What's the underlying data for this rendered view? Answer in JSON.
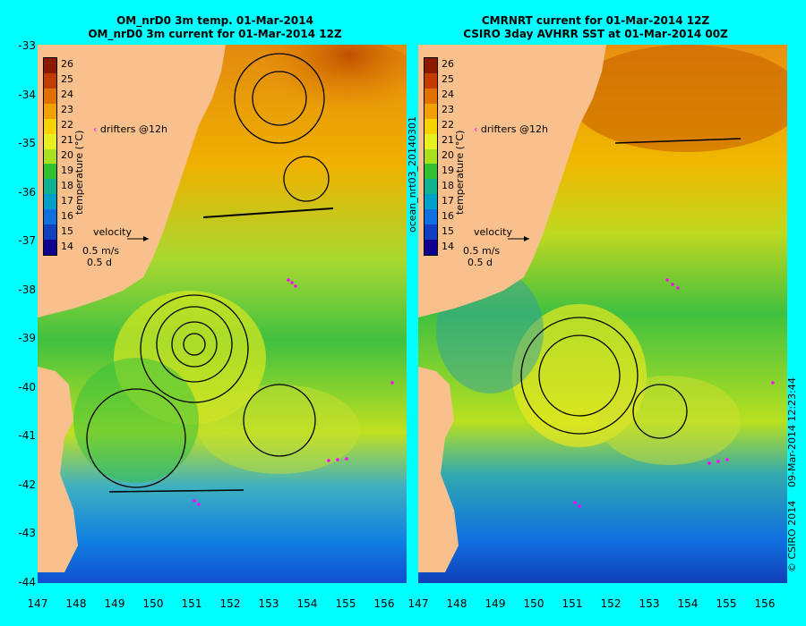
{
  "left": {
    "title_line1": "OM_nrD0 3m temp. 01-Mar-2014",
    "title_line2": "OM_nrD0 3m current for 01-Mar-2014 12Z"
  },
  "right": {
    "title_line1": "CMRNRT current for 01-Mar-2014 12Z",
    "title_line2": "CSIRO 3day AVHRR SST at 01-Mar-2014 00Z"
  },
  "colorbar": {
    "title": "temperature (°C)",
    "labels": [
      "26",
      "25",
      "24",
      "23",
      "22",
      "21",
      "20",
      "19",
      "18",
      "17",
      "16",
      "15",
      "14"
    ],
    "colors": [
      "#8b1a00",
      "#c23c00",
      "#e07000",
      "#f0a000",
      "#f7d400",
      "#e8f020",
      "#a8e020",
      "#30c030",
      "#10b090",
      "#00a0c8",
      "#1070e0",
      "#1040c0",
      "#100090"
    ]
  },
  "legend": {
    "drifters": "drifters @12h",
    "velocity": "velocity",
    "speed": "0.5 m/s",
    "duration": "0.5 d"
  },
  "y_ticks": [
    "-33",
    "-34",
    "-35",
    "-36",
    "-37",
    "-38",
    "-39",
    "-40",
    "-41",
    "-42",
    "-43",
    "-44"
  ],
  "x_ticks": [
    "147",
    "148",
    "149",
    "150",
    "151",
    "152",
    "153",
    "154",
    "155",
    "156"
  ],
  "side_label_left": "ocean_nrt03_20140301",
  "side_label_right": "09-Mar-2014 12:23:44",
  "credit": "© CSIRO 2014",
  "colors": {
    "background": "#00ffff",
    "land": "#f8c08c",
    "drifter": "#ff00ff"
  }
}
